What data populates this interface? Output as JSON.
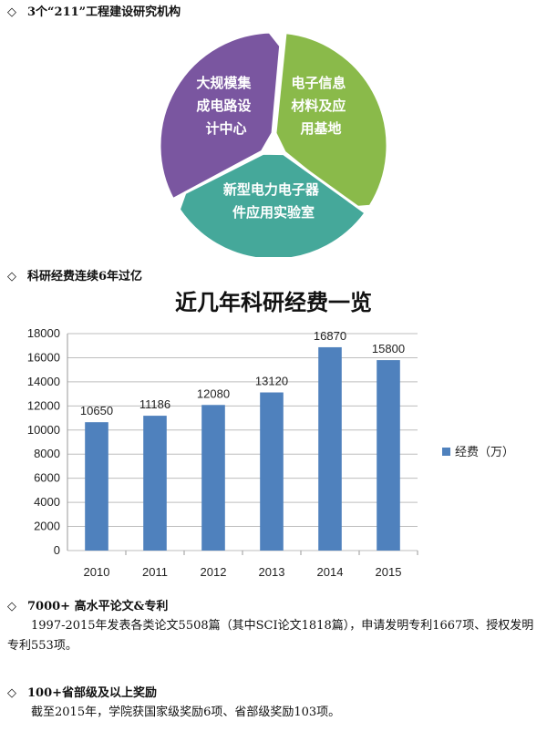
{
  "section1": {
    "bullet": "◇",
    "title": "3个“211”工程建设研究机构",
    "segments": [
      {
        "lines": [
          "大规模集",
          "成电路设",
          "计中心"
        ],
        "color": "#7a56a0"
      },
      {
        "lines": [
          "电子信息",
          "材料及应",
          "用基地"
        ],
        "color": "#8aba4a"
      },
      {
        "lines": [
          "新型电力电子器",
          "件应用实验室"
        ],
        "color": "#45a89a"
      }
    ]
  },
  "section2": {
    "bullet": "◇",
    "title": "科研经费连续6年过亿"
  },
  "chart_data": {
    "type": "bar",
    "title": "近几年科研经费一览",
    "categories": [
      "2010",
      "2011",
      "2012",
      "2013",
      "2014",
      "2015"
    ],
    "series": [
      {
        "name": "经费（万）",
        "values": [
          10650,
          11186,
          12080,
          13120,
          16870,
          15800
        ],
        "color": "#4f81bd"
      }
    ],
    "ylim": [
      0,
      18000
    ],
    "yticks": [
      "0",
      "2000",
      "4000",
      "6000",
      "8000",
      "10000",
      "12000",
      "14000",
      "16000",
      "18000"
    ],
    "grid": true,
    "legend": "right"
  },
  "section3": {
    "bullet": "◇",
    "title": "7000+ 高水平论文&专利",
    "body": "1997-2015年发表各类论文5508篇（其中SCI论文1818篇），申请发明专利1667项、授权发明专利553项。"
  },
  "section4": {
    "bullet": "◇",
    "title": "100+省部级及以上奖励",
    "body": "截至2015年，学院获国家级奖励6项、省部级奖励103项。"
  }
}
